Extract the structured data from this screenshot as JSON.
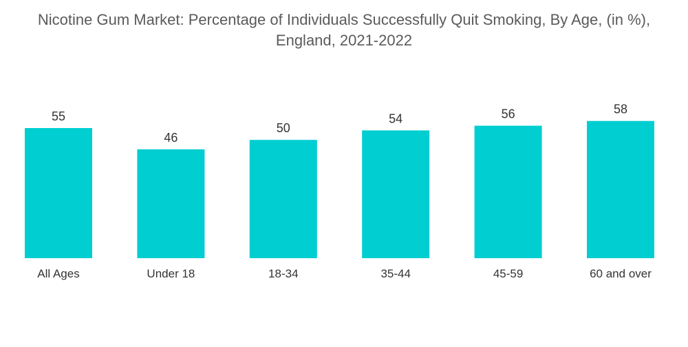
{
  "chart_data": {
    "type": "bar",
    "title_lines": [
      "Nicotine Gum Market: Percentage of Individuals Successfully Quit Smoking, By Age, (in %),",
      "England, 2021-2022"
    ],
    "categories": [
      "All Ages",
      "Under 18",
      "18-34",
      "35-44",
      "45-59",
      "60 and over"
    ],
    "values": [
      55,
      46,
      50,
      54,
      56,
      58
    ],
    "xlabel": "",
    "ylabel": "",
    "ylim": [
      0,
      60
    ],
    "grid": false,
    "legend": "none",
    "bar_color": "#00ced1"
  }
}
